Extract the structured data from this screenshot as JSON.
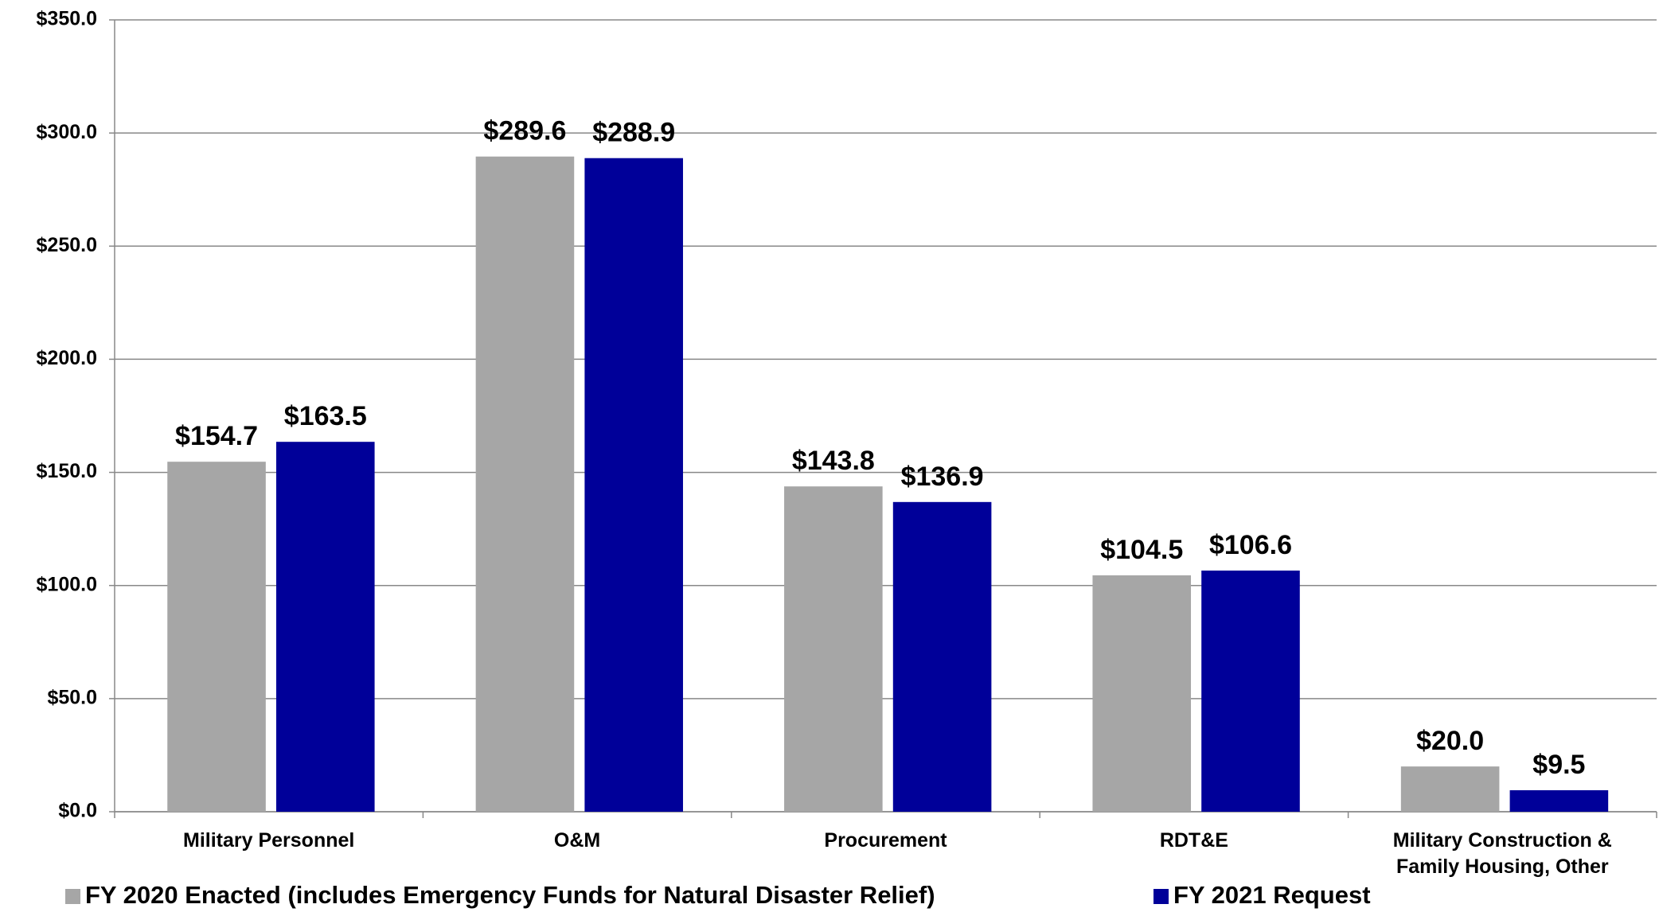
{
  "chart_data": {
    "type": "bar",
    "categories": [
      "Military Personnel",
      "O&M",
      "Procurement",
      "RDT&E",
      "Military Construction & Family Housing, Other"
    ],
    "series": [
      {
        "name": "FY 2020 Enacted (includes Emergency Funds for Natural Disaster Relief)",
        "color": "#a6a6a6",
        "values": [
          154.7,
          289.6,
          143.8,
          104.5,
          20.0
        ],
        "value_labels": [
          "$154.7",
          "$289.6",
          "$143.8",
          "$104.5",
          "$20.0"
        ]
      },
      {
        "name": "FY 2021 Request",
        "color": "#000099",
        "values": [
          163.5,
          288.9,
          136.9,
          106.6,
          9.5
        ],
        "value_labels": [
          "$163.5",
          "$288.9",
          "$136.9",
          "$106.6",
          "$9.5"
        ]
      }
    ],
    "ylim": [
      0,
      350
    ],
    "yticks": [
      {
        "value": 0,
        "label": "$0.0"
      },
      {
        "value": 50,
        "label": "$50.0"
      },
      {
        "value": 100,
        "label": "$100.0"
      },
      {
        "value": 150,
        "label": "$150.0"
      },
      {
        "value": 200,
        "label": "$200.0"
      },
      {
        "value": 250,
        "label": "$250.0"
      },
      {
        "value": 300,
        "label": "$300.0"
      },
      {
        "value": 350,
        "label": "$350.0"
      }
    ],
    "grid": true,
    "legend": "bottom"
  }
}
